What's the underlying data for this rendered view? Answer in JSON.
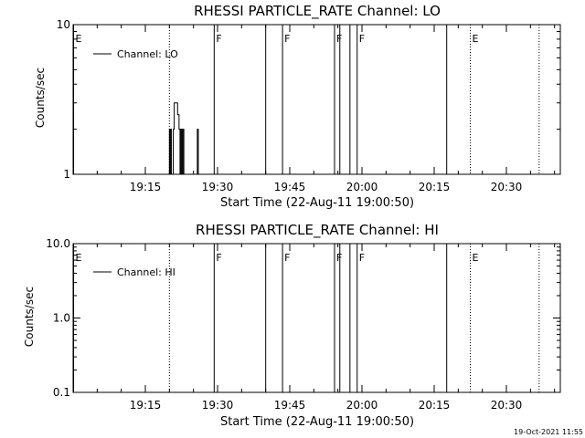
{
  "footer_timestamp": "19-Oct-2021 11:55",
  "chart_data": [
    {
      "type": "line",
      "title": "RHESSI PARTICLE_RATE Channel: LO",
      "xlabel": "Start Time (22-Aug-11 19:00:50)",
      "ylabel": "Counts/sec",
      "yscale": "log",
      "ylim": [
        1,
        10
      ],
      "yticks": [
        1,
        10
      ],
      "ytick_labels": [
        "1",
        "10"
      ],
      "xlim_minutes": [
        0,
        67
      ],
      "xticks": [
        15,
        30,
        45,
        60,
        75,
        90
      ],
      "xtick_labels": [
        "19:15",
        "19:30",
        "19:45",
        "20:00",
        "20:15",
        "20:30"
      ],
      "legend": {
        "label": "Channel: LO",
        "placement": "top-left"
      },
      "series": [
        {
          "name": "Channel: LO",
          "x": [
            19.8,
            20.0,
            20.1,
            20.3,
            20.4,
            20.8,
            21.0,
            21.4,
            21.7,
            22.0,
            22.2,
            22.4,
            22.6,
            22.8,
            23.0,
            23.3,
            23.5,
            23.7,
            25.6,
            25.8,
            26.0,
            26.2
          ],
          "y": [
            1,
            2,
            1,
            2,
            1,
            2,
            3,
            3,
            2.5,
            2,
            1,
            2,
            1,
            2,
            1,
            1,
            1,
            1,
            1,
            2,
            1,
            1
          ]
        }
      ],
      "markers": [
        {
          "x": 0.1,
          "label": "E",
          "style": "solid"
        },
        {
          "x": 20.0,
          "label": "",
          "style": "dotted"
        },
        {
          "x": 29.3,
          "label": "F",
          "style": "solid"
        },
        {
          "x": 40.0,
          "label": "",
          "style": "solid"
        },
        {
          "x": 43.5,
          "label": "F",
          "style": "solid"
        },
        {
          "x": 54.3,
          "label": "F",
          "style": "solid"
        },
        {
          "x": 55.4,
          "label": "",
          "style": "solid"
        },
        {
          "x": 57.5,
          "label": "",
          "style": "solid"
        },
        {
          "x": 59.0,
          "label": "F",
          "style": "solid"
        },
        {
          "x": 77.6,
          "label": "",
          "style": "solid"
        },
        {
          "x": 82.5,
          "label": "E",
          "style": "dotted"
        },
        {
          "x": 96.8,
          "label": "",
          "style": "dotted"
        }
      ]
    },
    {
      "type": "line",
      "title": "RHESSI PARTICLE_RATE Channel: HI",
      "xlabel": "Start Time (22-Aug-11 19:00:50)",
      "ylabel": "Counts/sec",
      "yscale": "log",
      "ylim": [
        0.1,
        10
      ],
      "yticks": [
        0.1,
        1,
        10
      ],
      "ytick_labels": [
        "0.1",
        "1.0",
        "10.0"
      ],
      "xticks": [
        15,
        30,
        45,
        60,
        75,
        90
      ],
      "xtick_labels": [
        "19:15",
        "19:30",
        "19:45",
        "20:00",
        "20:15",
        "20:30"
      ],
      "legend": {
        "label": "Channel: HI",
        "placement": "top-left"
      },
      "series": [
        {
          "name": "Channel: HI",
          "x": [],
          "y": []
        }
      ],
      "markers": [
        {
          "x": 0.1,
          "label": "E",
          "style": "solid"
        },
        {
          "x": 20.0,
          "label": "",
          "style": "dotted"
        },
        {
          "x": 29.3,
          "label": "F",
          "style": "solid"
        },
        {
          "x": 40.0,
          "label": "",
          "style": "solid"
        },
        {
          "x": 43.5,
          "label": "F",
          "style": "solid"
        },
        {
          "x": 54.3,
          "label": "F",
          "style": "solid"
        },
        {
          "x": 55.4,
          "label": "",
          "style": "solid"
        },
        {
          "x": 57.5,
          "label": "",
          "style": "solid"
        },
        {
          "x": 59.0,
          "label": "F",
          "style": "solid"
        },
        {
          "x": 77.6,
          "label": "",
          "style": "solid"
        },
        {
          "x": 82.5,
          "label": "E",
          "style": "dotted"
        },
        {
          "x": 96.8,
          "label": "",
          "style": "dotted"
        }
      ]
    }
  ]
}
